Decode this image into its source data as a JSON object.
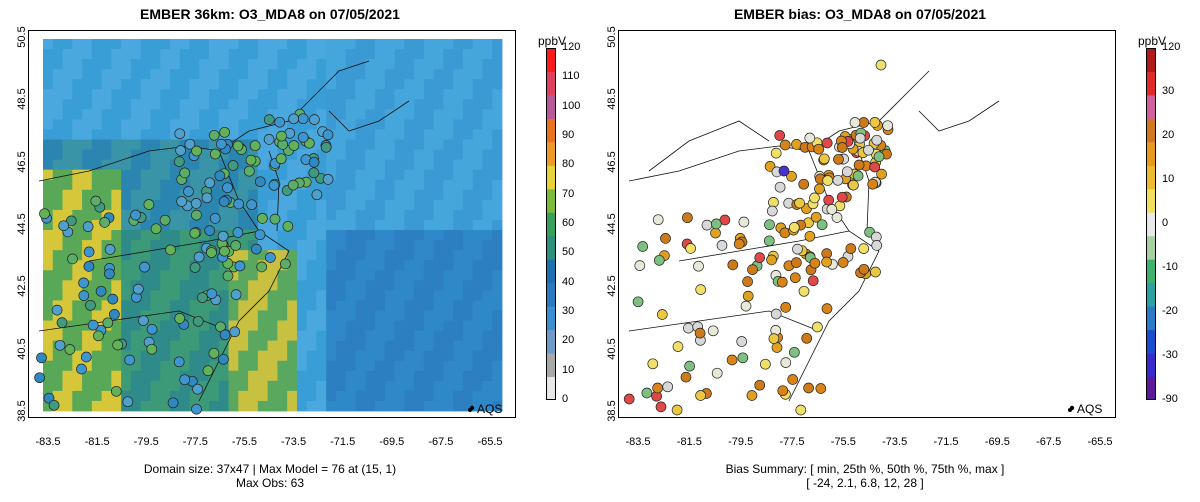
{
  "left_panel": {
    "title": "EMBER 36km: O3_MDA8 on 07/05/2021",
    "summary_line1": "Domain size: 37x47 | Max Model = 76 at (15, 1)",
    "summary_line2": "Max Obs: 63",
    "legend_label": "AQS",
    "colorbar": {
      "unit": "ppbV",
      "ticks": [
        "120",
        "110",
        "100",
        "90",
        "80",
        "70",
        "60",
        "50",
        "40",
        "30",
        "20",
        "10",
        "0"
      ],
      "colors": [
        "#e8e8e8",
        "#a8a8a8",
        "#6e9ac8",
        "#3a8fd0",
        "#2b78bf",
        "#1e6fb0",
        "#2e8f7a",
        "#38a05a",
        "#7cba3a",
        "#e6d43a",
        "#ee9a2a",
        "#e8721e",
        "#b85a9a",
        "#e04060",
        "#ff1a1a"
      ]
    }
  },
  "right_panel": {
    "title": "EMBER bias: O3_MDA8 on 07/05/2021",
    "summary_line1": "Bias Summary: [ min, 25th %, 50th %, 75th %, max ]",
    "summary_line2": "[ -24,   2.1,   6.8,   12,   28 ]",
    "legend_label": "AQS",
    "colorbar": {
      "unit": "ppbV",
      "ticks": [
        "120",
        "30",
        "20",
        "10",
        "0",
        "-10",
        "-20",
        "-30",
        "-90"
      ],
      "colors": [
        "#5a1a9a",
        "#3a2acc",
        "#1a4ed0",
        "#2a7ac8",
        "#2aa0a0",
        "#40b070",
        "#a8d0a0",
        "#e8e8e8",
        "#f0e060",
        "#ecbc30",
        "#e89a20",
        "#d07820",
        "#d060a0",
        "#e02a2a",
        "#b01a1a"
      ]
    }
  },
  "axes": {
    "y_ticks": [
      "50.5",
      "48.5",
      "46.5",
      "44.5",
      "42.5",
      "40.5",
      "38.5"
    ],
    "x_ticks": [
      "-83.5",
      "-81.5",
      "-79.5",
      "-77.5",
      "-75.5",
      "-73.5",
      "-71.5",
      "-69.5",
      "-67.5",
      "-65.5"
    ]
  }
}
